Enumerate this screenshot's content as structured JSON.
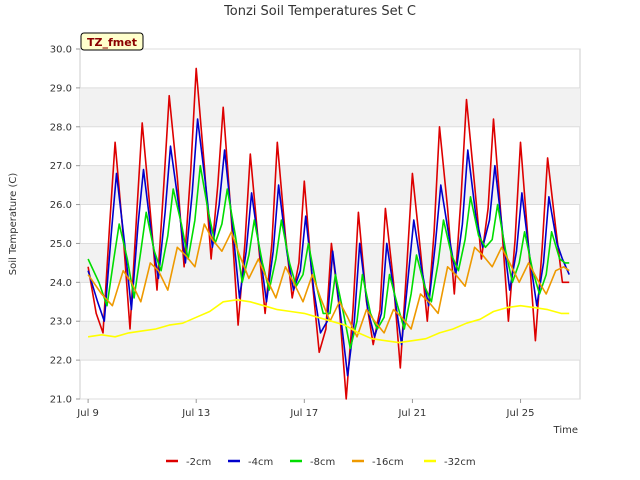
{
  "chart_data": {
    "type": "line",
    "title": "Tonzi Soil Temperatures Set C",
    "xlabel": "Time",
    "ylabel": "Soil Temperature (C)",
    "site_label": "TZ_fmet",
    "x_unit": "days since Jul 9",
    "xlim": [
      -0.3,
      18.2
    ],
    "ylim": [
      21.0,
      30.0
    ],
    "y_ticks": [
      "21.0",
      "22.0",
      "23.0",
      "24.0",
      "25.0",
      "26.0",
      "27.0",
      "28.0",
      "29.0",
      "30.0"
    ],
    "x_ticks": [
      {
        "label": "Jul 9",
        "value": 0
      },
      {
        "label": "Jul 13",
        "value": 4
      },
      {
        "label": "Jul 17",
        "value": 8
      },
      {
        "label": "Jul 21",
        "value": 12
      },
      {
        "label": "Jul 25",
        "value": 16
      }
    ],
    "grid": true,
    "legend_position": "bottom",
    "series": [
      {
        "name": "-2cm",
        "color": "#dd0000",
        "x": [
          0,
          0.3,
          0.55,
          0.8,
          1,
          1.3,
          1.55,
          1.8,
          2,
          2.3,
          2.55,
          2.8,
          3,
          3.3,
          3.55,
          3.8,
          4,
          4.3,
          4.55,
          4.8,
          5,
          5.3,
          5.55,
          5.8,
          6,
          6.3,
          6.55,
          6.8,
          7,
          7.3,
          7.55,
          7.8,
          8,
          8.3,
          8.55,
          8.8,
          9,
          9.3,
          9.55,
          9.8,
          10,
          10.3,
          10.55,
          10.8,
          11,
          11.3,
          11.55,
          11.8,
          12,
          12.3,
          12.55,
          12.8,
          13,
          13.3,
          13.55,
          13.8,
          14,
          14.3,
          14.55,
          14.8,
          15,
          15.3,
          15.55,
          15.8,
          16,
          16.3,
          16.55,
          16.8,
          17,
          17.3,
          17.55,
          17.8
        ],
        "y": [
          24.4,
          23.2,
          22.7,
          25.5,
          27.6,
          25.2,
          22.8,
          25.8,
          28.1,
          25.8,
          23.8,
          26.5,
          28.8,
          26.7,
          24.4,
          26.9,
          29.5,
          27.0,
          24.6,
          26.5,
          28.5,
          25.6,
          22.9,
          25.0,
          27.3,
          25.0,
          23.2,
          25.0,
          27.6,
          25.2,
          23.6,
          24.5,
          26.6,
          24.0,
          22.2,
          22.8,
          25.0,
          23.3,
          21.0,
          23.3,
          25.8,
          23.5,
          22.4,
          23.3,
          25.9,
          24.0,
          21.8,
          24.5,
          26.8,
          24.8,
          23.0,
          25.3,
          28.0,
          25.9,
          23.7,
          26.2,
          28.7,
          26.5,
          24.6,
          25.9,
          28.2,
          25.5,
          23.0,
          25.1,
          27.6,
          24.9,
          22.5,
          24.9,
          27.2,
          25.4,
          24.0,
          24.0
        ]
      },
      {
        "name": "-4cm",
        "color": "#0000cc",
        "x": [
          0,
          0.35,
          0.6,
          0.85,
          1.05,
          1.35,
          1.6,
          1.85,
          2.05,
          2.35,
          2.6,
          2.85,
          3.05,
          3.35,
          3.6,
          3.85,
          4.05,
          4.35,
          4.6,
          4.85,
          5.05,
          5.35,
          5.6,
          5.85,
          6.05,
          6.35,
          6.6,
          6.85,
          7.05,
          7.35,
          7.6,
          7.85,
          8.05,
          8.35,
          8.6,
          8.85,
          9.05,
          9.35,
          9.6,
          9.85,
          10.05,
          10.35,
          10.6,
          10.85,
          11.05,
          11.35,
          11.6,
          11.85,
          12.05,
          12.35,
          12.6,
          12.85,
          13.05,
          13.35,
          13.6,
          13.85,
          14.05,
          14.35,
          14.6,
          14.85,
          15.05,
          15.35,
          15.6,
          15.85,
          16.05,
          16.35,
          16.6,
          16.85,
          17.05,
          17.35,
          17.55,
          17.8
        ],
        "y": [
          24.3,
          23.5,
          23.0,
          25.2,
          26.8,
          25.0,
          23.3,
          25.5,
          26.9,
          25.2,
          24.1,
          25.8,
          27.5,
          26.0,
          24.5,
          26.3,
          28.2,
          26.5,
          24.9,
          26.0,
          27.4,
          25.4,
          23.6,
          24.8,
          26.3,
          24.8,
          23.5,
          24.8,
          26.5,
          24.8,
          23.8,
          24.3,
          25.7,
          23.8,
          22.7,
          23.0,
          24.8,
          23.1,
          21.6,
          23.0,
          25.0,
          23.3,
          22.6,
          23.2,
          25.0,
          23.6,
          22.4,
          24.2,
          25.6,
          24.3,
          23.4,
          25.0,
          26.5,
          25.2,
          24.2,
          25.5,
          27.4,
          25.7,
          24.9,
          25.6,
          27.0,
          25.2,
          23.8,
          24.8,
          26.3,
          24.6,
          23.4,
          24.5,
          26.2,
          25.0,
          24.6,
          24.2
        ]
      },
      {
        "name": "-8cm",
        "color": "#00dd00",
        "x": [
          0,
          0.4,
          0.7,
          0.95,
          1.15,
          1.45,
          1.7,
          1.95,
          2.15,
          2.45,
          2.7,
          2.95,
          3.15,
          3.45,
          3.7,
          3.95,
          4.15,
          4.45,
          4.7,
          4.95,
          5.15,
          5.45,
          5.7,
          5.95,
          6.15,
          6.45,
          6.7,
          6.95,
          7.15,
          7.45,
          7.7,
          7.95,
          8.15,
          8.45,
          8.7,
          8.95,
          9.15,
          9.45,
          9.7,
          9.95,
          10.15,
          10.45,
          10.7,
          10.95,
          11.15,
          11.45,
          11.7,
          11.95,
          12.15,
          12.45,
          12.7,
          12.95,
          13.15,
          13.45,
          13.7,
          13.95,
          14.15,
          14.45,
          14.7,
          14.95,
          15.15,
          15.45,
          15.7,
          15.95,
          16.15,
          16.45,
          16.7,
          16.95,
          17.15,
          17.45,
          17.65,
          17.8
        ],
        "y": [
          24.6,
          24.0,
          23.4,
          24.6,
          25.5,
          24.6,
          23.6,
          24.8,
          25.8,
          24.8,
          24.3,
          25.2,
          26.4,
          25.5,
          24.6,
          25.6,
          27.0,
          25.8,
          25.0,
          25.5,
          26.4,
          25.2,
          24.0,
          24.7,
          25.6,
          24.5,
          23.8,
          24.6,
          25.6,
          24.5,
          23.9,
          24.2,
          25.0,
          23.9,
          23.2,
          23.2,
          24.2,
          23.2,
          22.3,
          23.0,
          24.2,
          23.2,
          22.8,
          23.1,
          24.2,
          23.4,
          22.8,
          23.7,
          24.7,
          23.9,
          23.5,
          24.5,
          25.6,
          24.7,
          24.3,
          25.1,
          26.2,
          25.2,
          24.9,
          25.1,
          26.0,
          24.8,
          24.0,
          24.5,
          25.3,
          24.3,
          23.7,
          24.2,
          25.3,
          24.6,
          24.5,
          24.5
        ]
      },
      {
        "name": "-16cm",
        "color": "#ee9900",
        "x": [
          0,
          0.5,
          0.9,
          1.3,
          1.6,
          1.95,
          2.3,
          2.6,
          2.95,
          3.3,
          3.6,
          3.95,
          4.3,
          4.6,
          4.95,
          5.3,
          5.6,
          5.95,
          6.3,
          6.6,
          6.95,
          7.3,
          7.6,
          7.95,
          8.3,
          8.6,
          8.95,
          9.3,
          9.6,
          9.95,
          10.3,
          10.6,
          10.95,
          11.3,
          11.6,
          11.95,
          12.3,
          12.6,
          12.95,
          13.3,
          13.6,
          13.95,
          14.3,
          14.6,
          14.95,
          15.3,
          15.6,
          15.95,
          16.3,
          16.6,
          16.95,
          17.3,
          17.6,
          17.8
        ],
        "y": [
          24.2,
          23.7,
          23.4,
          24.3,
          24.0,
          23.5,
          24.5,
          24.3,
          23.8,
          24.9,
          24.7,
          24.4,
          25.5,
          25.1,
          24.8,
          25.3,
          24.7,
          24.1,
          24.6,
          24.1,
          23.6,
          24.4,
          24.0,
          23.5,
          24.2,
          23.6,
          23.0,
          23.5,
          23.1,
          22.6,
          23.3,
          23.0,
          22.7,
          23.3,
          23.1,
          22.8,
          23.7,
          23.5,
          23.2,
          24.4,
          24.2,
          23.9,
          24.9,
          24.7,
          24.4,
          24.9,
          24.5,
          24.0,
          24.5,
          24.1,
          23.7,
          24.3,
          24.4,
          24.3
        ]
      },
      {
        "name": "-32cm",
        "color": "#ffff00",
        "x": [
          0,
          0.5,
          1,
          1.5,
          2,
          2.5,
          3,
          3.5,
          4,
          4.5,
          5,
          5.5,
          6,
          6.5,
          7,
          7.5,
          8,
          8.5,
          9,
          9.5,
          10,
          10.5,
          11,
          11.5,
          12,
          12.5,
          13,
          13.5,
          14,
          14.5,
          15,
          15.5,
          16,
          16.5,
          17,
          17.5,
          17.8
        ],
        "y": [
          22.6,
          22.65,
          22.6,
          22.7,
          22.75,
          22.8,
          22.9,
          22.95,
          23.1,
          23.25,
          23.5,
          23.55,
          23.5,
          23.4,
          23.3,
          23.25,
          23.2,
          23.1,
          23.0,
          22.9,
          22.7,
          22.55,
          22.5,
          22.45,
          22.5,
          22.55,
          22.7,
          22.8,
          22.95,
          23.05,
          23.25,
          23.35,
          23.4,
          23.35,
          23.3,
          23.2,
          23.2
        ]
      }
    ]
  }
}
